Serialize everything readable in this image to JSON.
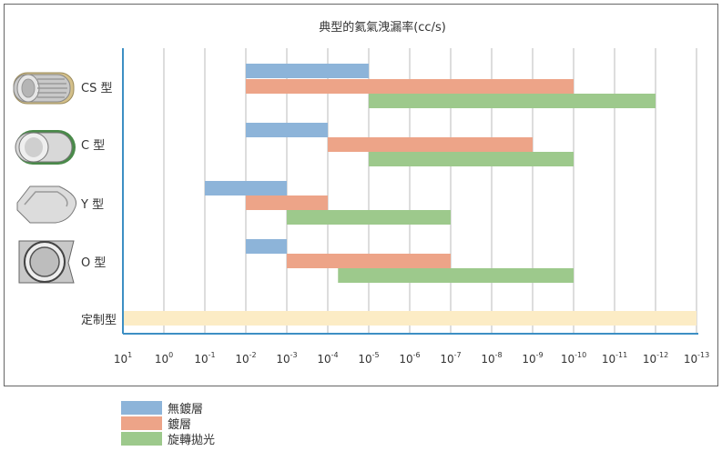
{
  "chart_data": {
    "type": "bar",
    "orientation": "horizontal-range",
    "title": "典型的氦氣洩漏率(cc/s)",
    "x_ticks": [
      {
        "base": "10",
        "exp": "1"
      },
      {
        "base": "10",
        "exp": "0"
      },
      {
        "base": "10",
        "exp": "-1"
      },
      {
        "base": "10",
        "exp": "-2"
      },
      {
        "base": "10",
        "exp": "-3"
      },
      {
        "base": "10",
        "exp": "-4"
      },
      {
        "base": "10",
        "exp": "-5"
      },
      {
        "base": "10",
        "exp": "-6"
      },
      {
        "base": "10",
        "exp": "-7"
      },
      {
        "base": "10",
        "exp": "-8"
      },
      {
        "base": "10",
        "exp": "-9"
      },
      {
        "base": "10",
        "exp": "-10"
      },
      {
        "base": "10",
        "exp": "-11"
      },
      {
        "base": "10",
        "exp": "-12"
      },
      {
        "base": "10",
        "exp": "-13"
      }
    ],
    "x_range_exponent": [
      1,
      -13
    ],
    "grid": "vertical",
    "legend_position": "bottom-left",
    "categories": [
      "CS 型",
      "C 型",
      "Y 型",
      "O 型",
      "定制型"
    ],
    "series": [
      {
        "name": "無鍍層",
        "color": "#8db4d9",
        "ranges": [
          [
            -2,
            -5
          ],
          [
            -2,
            -4
          ],
          [
            -1,
            -3
          ],
          [
            -2,
            -3
          ],
          null
        ]
      },
      {
        "name": "鍍層",
        "color": "#eda488",
        "ranges": [
          [
            -2,
            -10
          ],
          [
            -4,
            -9
          ],
          [
            -2,
            -4
          ],
          [
            -3,
            -7
          ],
          null
        ]
      },
      {
        "name": "旋轉拋光",
        "color": "#9dc98c",
        "ranges": [
          [
            -5,
            -12
          ],
          [
            -5,
            -10
          ],
          [
            -3,
            -7
          ],
          [
            -4.25,
            -10
          ],
          null
        ]
      }
    ],
    "custom_bar": {
      "color": "#fcecc5",
      "range": [
        1,
        -13
      ]
    }
  }
}
